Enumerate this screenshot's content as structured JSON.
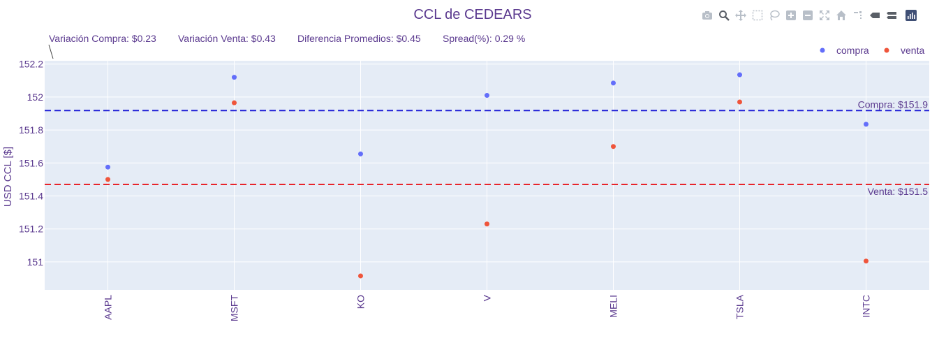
{
  "chart_data": {
    "type": "scatter",
    "title": "CCL de CEDEARS",
    "ylabel": "USD CCL [$]",
    "xlabel": "",
    "categories": [
      "AAPL",
      "MSFT",
      "KO",
      "V",
      "MELI",
      "TSLA",
      "INTC"
    ],
    "series": [
      {
        "name": "compra",
        "color": "#636efa",
        "values": [
          151.575,
          152.12,
          151.655,
          152.01,
          152.085,
          152.135,
          151.835
        ]
      },
      {
        "name": "venta",
        "color": "#ef553b",
        "values": [
          151.5,
          151.965,
          150.915,
          151.23,
          151.7,
          151.97,
          151.005
        ]
      }
    ],
    "ylim": [
      150.83,
      152.22
    ],
    "yticks": [
      151,
      151.2,
      151.4,
      151.6,
      151.8,
      152,
      152.2
    ],
    "ytick_labels": [
      "151",
      "151.2",
      "151.4",
      "151.6",
      "151.8",
      "152",
      "152.2"
    ],
    "hlines": [
      {
        "value": 151.918,
        "color": "#1f1fd6",
        "label": "Compra: $151.9"
      },
      {
        "value": 151.47,
        "color": "#e8242a",
        "label": "Venta: $151.5"
      }
    ],
    "annotations": [
      "Variación Compra: $0.23",
      "Variación Venta: $0.43",
      "Diferencia Promedios: $0.45",
      "Spread(%): 0.29 %"
    ],
    "legend_position": "top-right",
    "grid": true,
    "plot_bg": "#e5ecf6"
  },
  "modebar": {
    "buttons": [
      "camera-icon",
      "zoom-icon",
      "pan-icon",
      "box-select-icon",
      "lasso-icon",
      "zoom-in-icon",
      "zoom-out-icon",
      "autoscale-icon",
      "home-icon",
      "spike-lines-icon",
      "hover-closest-icon",
      "hover-compare-icon",
      "plotly-logo-icon"
    ]
  }
}
